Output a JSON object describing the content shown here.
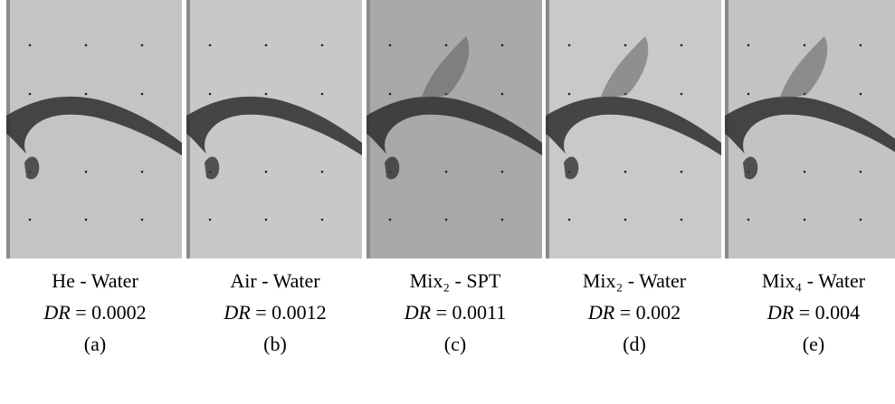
{
  "panels": [
    {
      "fluids": "He - Water",
      "ratio": {
        "symbol": "DR",
        "sign": "=",
        "value": 0.0002
      },
      "label": "(a)"
    },
    {
      "fluids": "Air - Water",
      "ratio": {
        "symbol": "DR",
        "sign": "=",
        "value": 0.0012
      },
      "label": "(b)"
    },
    {
      "fluids": "Mix₂ - SPT",
      "ratio": {
        "symbol": "DR",
        "sign": "=",
        "value": 0.0011
      },
      "label": "(c)"
    },
    {
      "fluids": "Mix₂ - Water",
      "ratio": {
        "symbol": "DR",
        "sign": "=",
        "value": 0.002
      },
      "label": "(d)"
    },
    {
      "fluids": "Mix₄ - Water",
      "ratio": {
        "symbol": "DR",
        "sign": "=",
        "value": 0.004
      },
      "label": "(e)"
    }
  ]
}
